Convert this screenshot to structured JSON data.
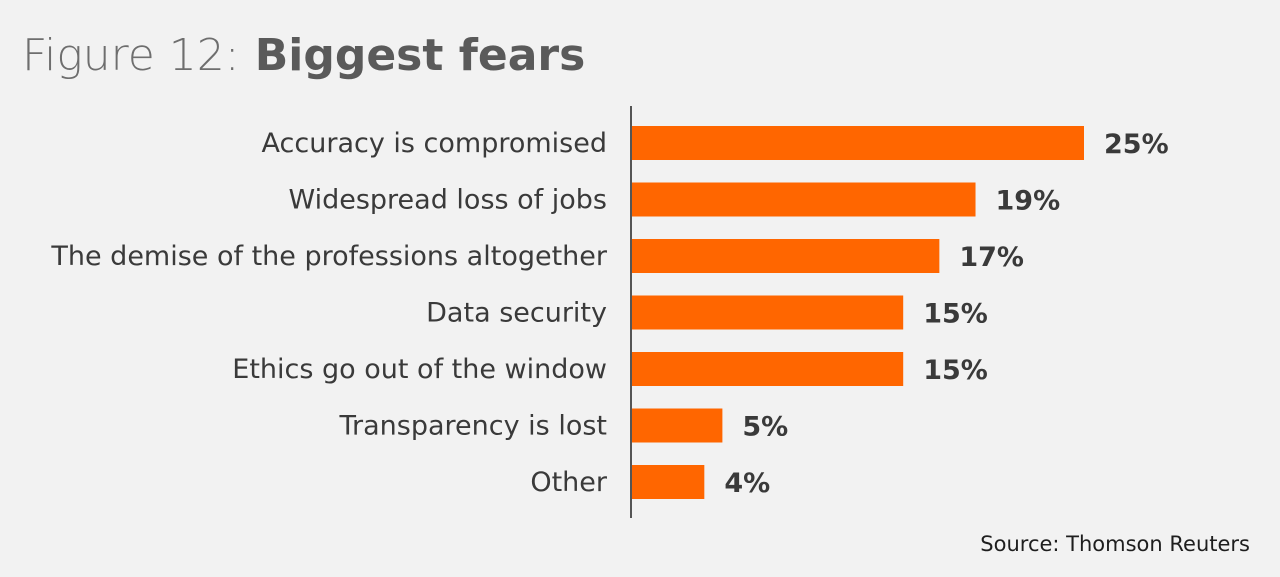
{
  "chart_data": {
    "type": "bar",
    "orientation": "horizontal",
    "title_prefix": "Figure 12:",
    "title": "Biggest fears",
    "categories": [
      "Accuracy is compromised",
      "Widespread loss of jobs",
      "The demise of the professions altogether",
      "Data security",
      "Ethics go out of the window",
      "Transparency is lost",
      "Other"
    ],
    "values": [
      25,
      19,
      17,
      15,
      15,
      5,
      4
    ],
    "value_labels": [
      "25%",
      "19%",
      "17%",
      "15%",
      "15%",
      "5%",
      "4%"
    ],
    "unit": "%",
    "xlim": [
      0,
      25
    ],
    "xlabel": "",
    "ylabel": "",
    "grid": false,
    "legend": "none",
    "source": "Source: Thomson Reuters"
  },
  "colors": {
    "background": "#f2f2f2",
    "bar": "#ff6600",
    "axis": "#555555",
    "text": "#3a3a3a"
  }
}
